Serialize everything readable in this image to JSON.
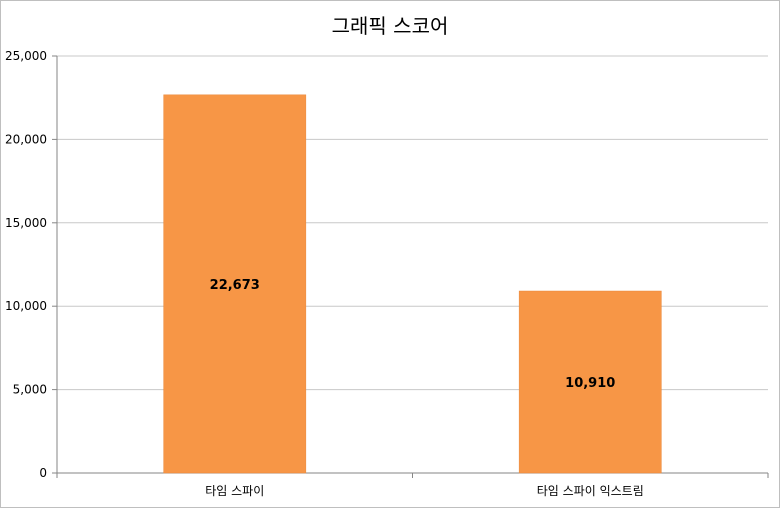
{
  "chart_data": {
    "type": "bar",
    "title": "그래픽 스코어",
    "categories": [
      "타임 스파이",
      "타임 스파이 익스트림"
    ],
    "values": [
      22673,
      10910
    ],
    "value_labels": [
      "22,673",
      "10,910"
    ],
    "ylim": [
      0,
      25000
    ],
    "yticks": [
      0,
      5000,
      10000,
      15000,
      20000,
      25000
    ],
    "ytick_labels": [
      "0",
      "5,000",
      "10,000",
      "15,000",
      "20,000",
      "25,000"
    ],
    "xlabel": "",
    "ylabel": "",
    "grid": true,
    "legend": "none",
    "bar_color": "#F79646"
  }
}
